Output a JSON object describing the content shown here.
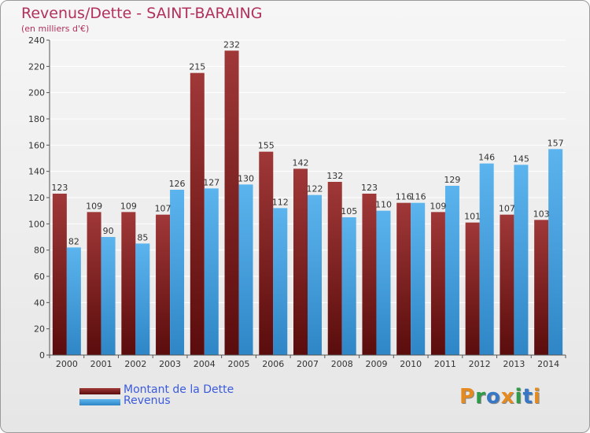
{
  "chart_data": {
    "type": "bar",
    "title": "Revenus/Dette - SAINT-BARAING",
    "subtitle": "(en milliers d'€)",
    "xlabel": "",
    "ylabel": "",
    "ylim": [
      0,
      240
    ],
    "yticks": [
      0,
      20,
      40,
      60,
      80,
      100,
      120,
      140,
      160,
      180,
      200,
      220,
      240
    ],
    "grid": true,
    "legend_position": "bottom-left",
    "categories": [
      "2000",
      "2001",
      "2002",
      "2003",
      "2004",
      "2005",
      "2006",
      "2007",
      "2008",
      "2009",
      "2010",
      "2011",
      "2012",
      "2013",
      "2014"
    ],
    "series": [
      {
        "name": "Montant de la Dette",
        "color": "#7a1a1a",
        "values": [
          123,
          109,
          109,
          107,
          215,
          232,
          155,
          142,
          132,
          123,
          116,
          109,
          101,
          107,
          103
        ]
      },
      {
        "name": "Revenus",
        "color": "#4aa3e0",
        "values": [
          82,
          90,
          85,
          126,
          127,
          130,
          112,
          122,
          105,
          110,
          116,
          129,
          146,
          145,
          157
        ]
      }
    ]
  },
  "logo": {
    "text": "Proxiti",
    "letters": [
      "P",
      "r",
      "o",
      "x",
      "i",
      "t",
      "i"
    ]
  }
}
